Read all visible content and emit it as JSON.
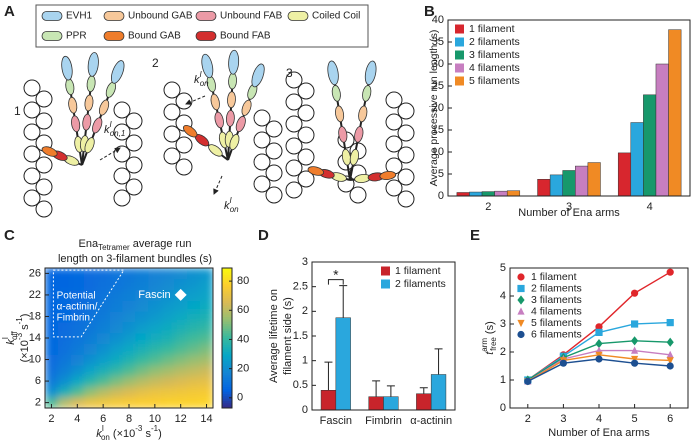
{
  "panel_labels": [
    "A",
    "B",
    "C",
    "D",
    "E"
  ],
  "diagram": {
    "legend": [
      {
        "label": "EVH1",
        "color": "#a9d4ef"
      },
      {
        "label": "PPR",
        "color": "#c8e6b4"
      },
      {
        "label": "Unbound GAB",
        "color": "#f7c89a"
      },
      {
        "label": "Bound GAB",
        "color": "#ef7d2c"
      },
      {
        "label": "Unbound FAB",
        "color": "#ec9aa6"
      },
      {
        "label": "Bound FAB",
        "color": "#d32f2f"
      },
      {
        "label": "Coiled Coil",
        "color": "#eef0a4"
      }
    ],
    "states": [
      "1",
      "2",
      "3"
    ],
    "rates": [
      {
        "base": "k",
        "sup": "I",
        "sub": "on,1"
      },
      {
        "base": "k",
        "sup": "I",
        "sub": "on"
      },
      {
        "base": "k",
        "sup": "I",
        "sub": "on"
      }
    ]
  },
  "chart_data": [
    {
      "type": "bar",
      "categories": [
        "2",
        "3",
        "4"
      ],
      "xlabel": "Number of Ena arms",
      "ylabel": "Average processive run length (s)",
      "ylim": [
        0,
        40
      ],
      "yticks": [
        0,
        5,
        10,
        15,
        20,
        25,
        30,
        35,
        40
      ],
      "legend": "upper-left",
      "series": [
        {
          "name": "1 filament",
          "color": "#d7262e",
          "values": [
            0.8,
            3.8,
            9.8
          ]
        },
        {
          "name": "2 filaments",
          "color": "#2aa7dd",
          "values": [
            0.9,
            4.8,
            16.7
          ]
        },
        {
          "name": "3 filaments",
          "color": "#17986b",
          "values": [
            1.0,
            5.8,
            23.0
          ]
        },
        {
          "name": "4 filaments",
          "color": "#c77ec0",
          "values": [
            1.1,
            6.8,
            30.0
          ]
        },
        {
          "name": "5 filaments",
          "color": "#f08a24",
          "values": [
            1.2,
            7.6,
            37.8
          ]
        }
      ]
    },
    {
      "type": "heatmap",
      "title": [
        "Ena",
        "Tetramer",
        " average run",
        "length on 3-filament bundles (s)"
      ],
      "xlabel": [
        "k",
        "I",
        "on",
        " (×10",
        "-3",
        " s",
        "-1",
        ")"
      ],
      "ylabel": [
        "k",
        "I",
        "off",
        "(×10",
        "-3",
        " s",
        "-1",
        ")"
      ],
      "x": [
        2,
        3,
        4,
        5,
        6,
        7,
        8,
        9,
        10,
        11,
        12,
        13,
        14
      ],
      "y": [
        2,
        4,
        6,
        8,
        10,
        12,
        14,
        16,
        18,
        20,
        22,
        24,
        26
      ],
      "z": [
        [
          44,
          59,
          66,
          71,
          73,
          75,
          76,
          77,
          77,
          78,
          78,
          78,
          79
        ],
        [
          21,
          34,
          44,
          53,
          59,
          63,
          66,
          69,
          71,
          72,
          73,
          74,
          75
        ],
        [
          13,
          21,
          30,
          38,
          44,
          50,
          55,
          59,
          62,
          64,
          66,
          68,
          69
        ],
        [
          10,
          15,
          21,
          28,
          34,
          39,
          44,
          49,
          53,
          56,
          59,
          61,
          63
        ],
        [
          8,
          12,
          16,
          21,
          26,
          31,
          36,
          41,
          44,
          48,
          51,
          54,
          56
        ],
        [
          7,
          10,
          13,
          17,
          21,
          26,
          30,
          34,
          38,
          41,
          44,
          47,
          50
        ],
        [
          7,
          9,
          11,
          14,
          18,
          21,
          25,
          29,
          32,
          35,
          39,
          42,
          44
        ],
        [
          6,
          8,
          10,
          12,
          15,
          18,
          21,
          25,
          28,
          31,
          34,
          37,
          39
        ],
        [
          6,
          7,
          9,
          11,
          13,
          16,
          19,
          21,
          24,
          27,
          30,
          33,
          35
        ],
        [
          6,
          7,
          8,
          10,
          12,
          14,
          16,
          19,
          21,
          24,
          26,
          29,
          31
        ],
        [
          6,
          7,
          8,
          9,
          11,
          13,
          15,
          17,
          19,
          21,
          24,
          26,
          28
        ],
        [
          6,
          6,
          7,
          8,
          10,
          11,
          13,
          15,
          17,
          19,
          21,
          23,
          26
        ],
        [
          5,
          6,
          7,
          8,
          9,
          11,
          12,
          14,
          16,
          17,
          19,
          21,
          23
        ]
      ],
      "xlim": [
        1.5,
        14.5
      ],
      "ylim": [
        1,
        27
      ],
      "xticks": [
        2,
        4,
        6,
        8,
        10,
        12,
        14
      ],
      "yticks": [
        2,
        6,
        10,
        14,
        18,
        22,
        26
      ],
      "zlim": [
        -7,
        89
      ],
      "zticks": [
        0,
        20,
        40,
        60,
        80
      ],
      "colormap": "parula",
      "region_label": [
        "Potential",
        "α-actinin/",
        "Fimbrin"
      ],
      "points": [
        {
          "label": "Fascin",
          "x": 12,
          "y": 22,
          "color": "#ffffff"
        }
      ]
    },
    {
      "type": "bar",
      "categories": [
        "Fascin",
        "Fimbrin",
        "α-actinin"
      ],
      "ylabel": [
        "Average lifetime on",
        "filament side (s)"
      ],
      "ylim": [
        0,
        3
      ],
      "yticks": [
        0,
        0.5,
        1,
        1.5,
        2,
        2.5,
        3
      ],
      "legend": "upper-right",
      "series": [
        {
          "name": "1 filament",
          "color": "#c8242b",
          "values": [
            0.4,
            0.27,
            0.33
          ],
          "errors": [
            0.57,
            0.32,
            0.12
          ]
        },
        {
          "name": "2 filaments",
          "color": "#2aa7dd",
          "values": [
            1.87,
            0.27,
            0.72
          ],
          "errors": [
            0.65,
            0.22,
            0.52
          ]
        }
      ],
      "significance": {
        "label": "*",
        "category": "Fascin"
      }
    },
    {
      "type": "line",
      "x": [
        2,
        3,
        4,
        5,
        6
      ],
      "xlim": [
        1.5,
        6.5
      ],
      "xticks": [
        2,
        3,
        4,
        5,
        6
      ],
      "ylim": [
        0,
        5
      ],
      "yticks": [
        0,
        1,
        2,
        3,
        4,
        5
      ],
      "xlabel": "Number of Ena arms",
      "ylabel": [
        "t",
        "arm",
        "free",
        " (s)"
      ],
      "legend": "upper-left",
      "series": [
        {
          "name": "1 filament",
          "color": "#e0262b",
          "marker": "circle",
          "values": [
            1.0,
            1.9,
            2.9,
            4.1,
            4.85
          ]
        },
        {
          "name": "2 filaments",
          "color": "#2aa7dd",
          "marker": "square",
          "values": [
            1.0,
            1.85,
            2.7,
            3.0,
            3.05
          ]
        },
        {
          "name": "3 filaments",
          "color": "#17986b",
          "marker": "diamond",
          "values": [
            1.0,
            1.8,
            2.3,
            2.4,
            2.35
          ]
        },
        {
          "name": "4 filaments",
          "color": "#c77ec0",
          "marker": "triangle-up",
          "values": [
            0.95,
            1.75,
            2.05,
            2.05,
            1.9
          ]
        },
        {
          "name": "5 filaments",
          "color": "#f08a24",
          "marker": "triangle-down",
          "values": [
            0.95,
            1.7,
            1.9,
            1.75,
            1.7
          ]
        },
        {
          "name": "6 filaments",
          "color": "#1d4f91",
          "marker": "circle",
          "values": [
            0.95,
            1.6,
            1.75,
            1.6,
            1.5
          ]
        }
      ]
    }
  ]
}
